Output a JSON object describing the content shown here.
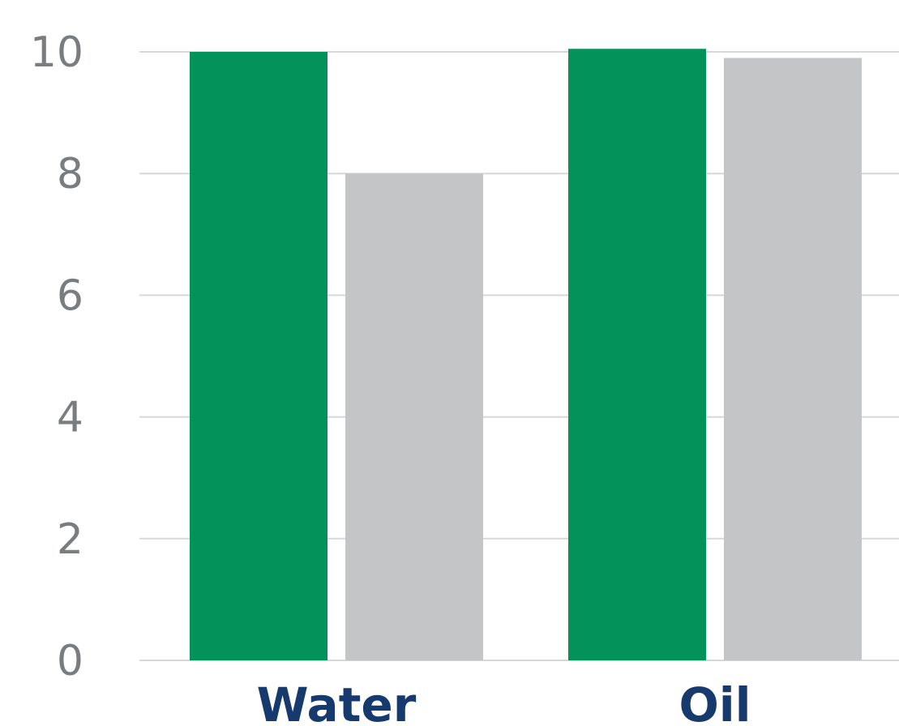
{
  "chart_data": {
    "type": "bar",
    "title": "",
    "xlabel": "",
    "ylabel": "",
    "categories": [
      "Water",
      "Oil"
    ],
    "series": [
      {
        "color": "#03935a",
        "values": [
          10.0,
          10.05
        ]
      },
      {
        "color": "#c3c5c6",
        "values": [
          8.0,
          9.9
        ]
      }
    ],
    "ylim": [
      0,
      10
    ],
    "yticks": [
      "0",
      "2",
      "4",
      "6",
      "8",
      "10"
    ],
    "grid": true,
    "legend": "none"
  }
}
